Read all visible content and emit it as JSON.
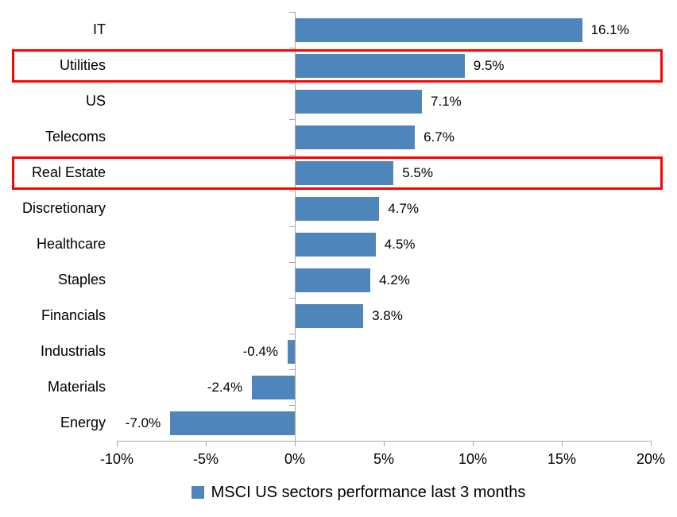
{
  "chart_data": {
    "type": "bar",
    "orientation": "horizontal",
    "title": "",
    "categories": [
      "IT",
      "Utilities",
      "US",
      "Telecoms",
      "Real Estate",
      "Discretionary",
      "Healthcare",
      "Staples",
      "Financials",
      "Industrials",
      "Materials",
      "Energy"
    ],
    "values": [
      16.1,
      9.5,
      7.1,
      6.7,
      5.5,
      4.7,
      4.5,
      4.2,
      3.8,
      -0.4,
      -2.4,
      -7.0
    ],
    "data_labels": [
      "16.1%",
      "9.5%",
      "7.1%",
      "6.7%",
      "5.5%",
      "4.7%",
      "4.5%",
      "4.2%",
      "3.8%",
      "-0.4%",
      "-2.4%",
      "-7.0%"
    ],
    "highlighted_categories": [
      "Utilities",
      "Real Estate"
    ],
    "xlim": [
      -10,
      20
    ],
    "x_tick_values": [
      -10,
      -5,
      0,
      5,
      10,
      15,
      20
    ],
    "x_tick_labels": [
      "-10%",
      "-5%",
      "0%",
      "5%",
      "10%",
      "15%",
      "20%"
    ],
    "grid": false,
    "legend_position": "bottom",
    "legend": "MSCI US sectors performance last 3 months",
    "colors": {
      "bar": "#4e86bc",
      "highlight_box": "#fe0000",
      "axis": "#a6a6a6",
      "text": "#000000"
    }
  }
}
